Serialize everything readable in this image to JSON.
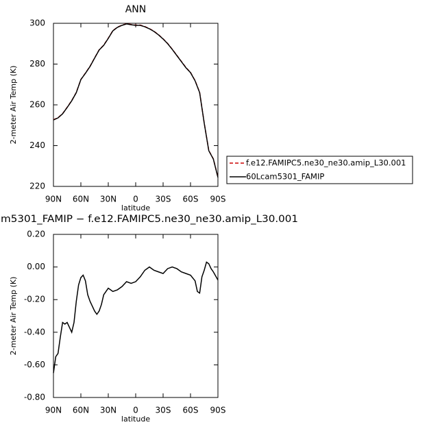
{
  "chart_data": [
    {
      "type": "line",
      "title": "ANN",
      "xlabel": "latitude",
      "ylabel": "2-meter Air Temp (K)",
      "x": [
        90,
        85,
        80,
        75,
        70,
        65,
        60,
        55,
        50,
        45,
        40,
        35,
        30,
        25,
        20,
        15,
        10,
        5,
        0,
        -5,
        -10,
        -15,
        -20,
        -25,
        -30,
        -35,
        -40,
        -45,
        -50,
        -55,
        -60,
        -65,
        -70,
        -75,
        -80,
        -85,
        -90
      ],
      "series": [
        {
          "name": "f.e12.FAMIPC5.ne30_ne30.amip_L30.001",
          "color": "#cc0000",
          "line_style": "dashed",
          "values": [
            252.7,
            253.7,
            255.7,
            258.8,
            262.1,
            266.1,
            272.4,
            275.6,
            278.9,
            283.0,
            287.0,
            289.3,
            292.7,
            296.4,
            298.1,
            299.1,
            299.8,
            299.4,
            299.1,
            299.1,
            298.4,
            297.4,
            296.1,
            294.4,
            292.4,
            290.1,
            287.3,
            284.3,
            281.3,
            278.3,
            275.9,
            271.9,
            266.1,
            251.1,
            237.6,
            233.5,
            224.5
          ]
        },
        {
          "name": "60Lcam5301_FAMIP",
          "color": "#000000",
          "line_style": "solid",
          "values": [
            252.6,
            253.6,
            255.6,
            258.7,
            262.0,
            266.0,
            272.4,
            275.5,
            278.8,
            282.9,
            286.9,
            289.2,
            292.6,
            296.3,
            298.0,
            299.0,
            299.7,
            299.3,
            299.0,
            299.0,
            298.3,
            297.3,
            296.0,
            294.3,
            292.3,
            290.0,
            287.2,
            284.2,
            281.2,
            278.2,
            275.8,
            271.8,
            266.0,
            251.0,
            237.5,
            233.4,
            224.4
          ]
        }
      ],
      "xlim": [
        90,
        -90
      ],
      "xticks": [
        {
          "value": 90,
          "label": "90N"
        },
        {
          "value": 60,
          "label": "60N"
        },
        {
          "value": 30,
          "label": "30N"
        },
        0,
        {
          "value": -30,
          "label": "30S"
        },
        {
          "value": -60,
          "label": "60S"
        },
        {
          "value": -90,
          "label": "90S"
        }
      ],
      "ylim": [
        220,
        300
      ],
      "yticks": [
        220,
        240,
        260,
        280,
        300
      ],
      "legend": "right"
    },
    {
      "type": "line",
      "title": "m5301_FAMIP − f.e12.FAMIPC5.ne30_ne30.amip_L30.001",
      "xlabel": "latitude",
      "ylabel": "2-meter Air Temp (K)",
      "x": [
        90,
        87.5,
        85,
        82.5,
        80,
        77.5,
        75,
        72.5,
        70,
        67.5,
        65,
        62.5,
        60,
        57.5,
        55,
        52.5,
        50,
        47.5,
        45,
        42.5,
        40,
        37.5,
        35,
        32.5,
        30,
        27.5,
        25,
        20,
        15,
        10,
        5,
        0,
        -5,
        -10,
        -15,
        -20,
        -25,
        -30,
        -35,
        -40,
        -45,
        -50,
        -55,
        -60,
        -65,
        -67.5,
        -70,
        -72.5,
        -75,
        -77.5,
        -80,
        -82.5,
        -85,
        -90
      ],
      "series": [
        {
          "color": "#000000",
          "line_style": "solid",
          "values": [
            -0.65,
            -0.55,
            -0.53,
            -0.43,
            -0.34,
            -0.35,
            -0.34,
            -0.37,
            -0.4,
            -0.34,
            -0.21,
            -0.11,
            -0.065,
            -0.05,
            -0.085,
            -0.17,
            -0.21,
            -0.24,
            -0.27,
            -0.29,
            -0.27,
            -0.23,
            -0.17,
            -0.15,
            -0.13,
            -0.14,
            -0.15,
            -0.14,
            -0.12,
            -0.09,
            -0.1,
            -0.09,
            -0.06,
            -0.02,
            0.0,
            -0.02,
            -0.03,
            -0.04,
            -0.01,
            0.0,
            -0.01,
            -0.03,
            -0.04,
            -0.05,
            -0.085,
            -0.15,
            -0.16,
            -0.06,
            -0.02,
            0.03,
            0.02,
            -0.01,
            -0.03,
            -0.08
          ]
        }
      ],
      "xlim": [
        90,
        -90
      ],
      "xticks": [
        {
          "value": 90,
          "label": "90N"
        },
        {
          "value": 60,
          "label": "60N"
        },
        {
          "value": 30,
          "label": "30N"
        },
        0,
        {
          "value": -30,
          "label": "30S"
        },
        {
          "value": -60,
          "label": "60S"
        },
        {
          "value": -90,
          "label": "90S"
        }
      ],
      "ylim": [
        -0.8,
        0.2
      ],
      "yticks": [
        {
          "value": -0.8,
          "label": "-0.80"
        },
        {
          "value": -0.6,
          "label": "-0.60"
        },
        {
          "value": -0.4,
          "label": "-0.40"
        },
        {
          "value": -0.2,
          "label": "-0.20"
        },
        {
          "value": 0,
          "label": "0.00"
        },
        {
          "value": 0.2,
          "label": "0.20"
        }
      ]
    }
  ]
}
